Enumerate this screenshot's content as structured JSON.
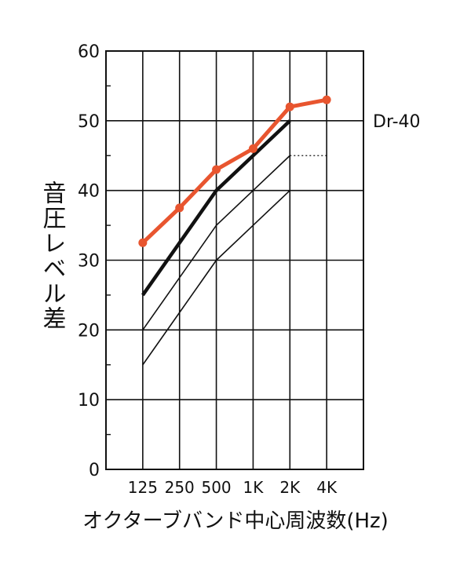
{
  "chart_data": {
    "type": "line",
    "xlabel": "オクターブバンド中心周波数(Hz)",
    "ylabel": "音圧レベル差",
    "categories": [
      "125",
      "250",
      "500",
      "1K",
      "2K",
      "4K"
    ],
    "ylim": [
      0,
      60
    ],
    "yticks": [
      0,
      10,
      20,
      30,
      40,
      50,
      60
    ],
    "grid": true,
    "series": [
      {
        "name": "Dr-40",
        "color": "#e8552f",
        "markers": true,
        "values": [
          32.5,
          37.5,
          43,
          46,
          52,
          53
        ]
      },
      {
        "color": "#111111",
        "bold": true,
        "values": [
          25,
          32.5,
          40,
          45,
          50,
          null
        ]
      },
      {
        "color": "#111111",
        "values": [
          20,
          27.5,
          35,
          40,
          45,
          null
        ]
      },
      {
        "color": "#111111",
        "values": [
          15,
          22.5,
          30,
          35,
          40,
          null
        ]
      }
    ],
    "annotations": [
      {
        "type": "dotted-segment",
        "y": 45,
        "x_from": "2K",
        "x_to": "4K"
      }
    ]
  }
}
